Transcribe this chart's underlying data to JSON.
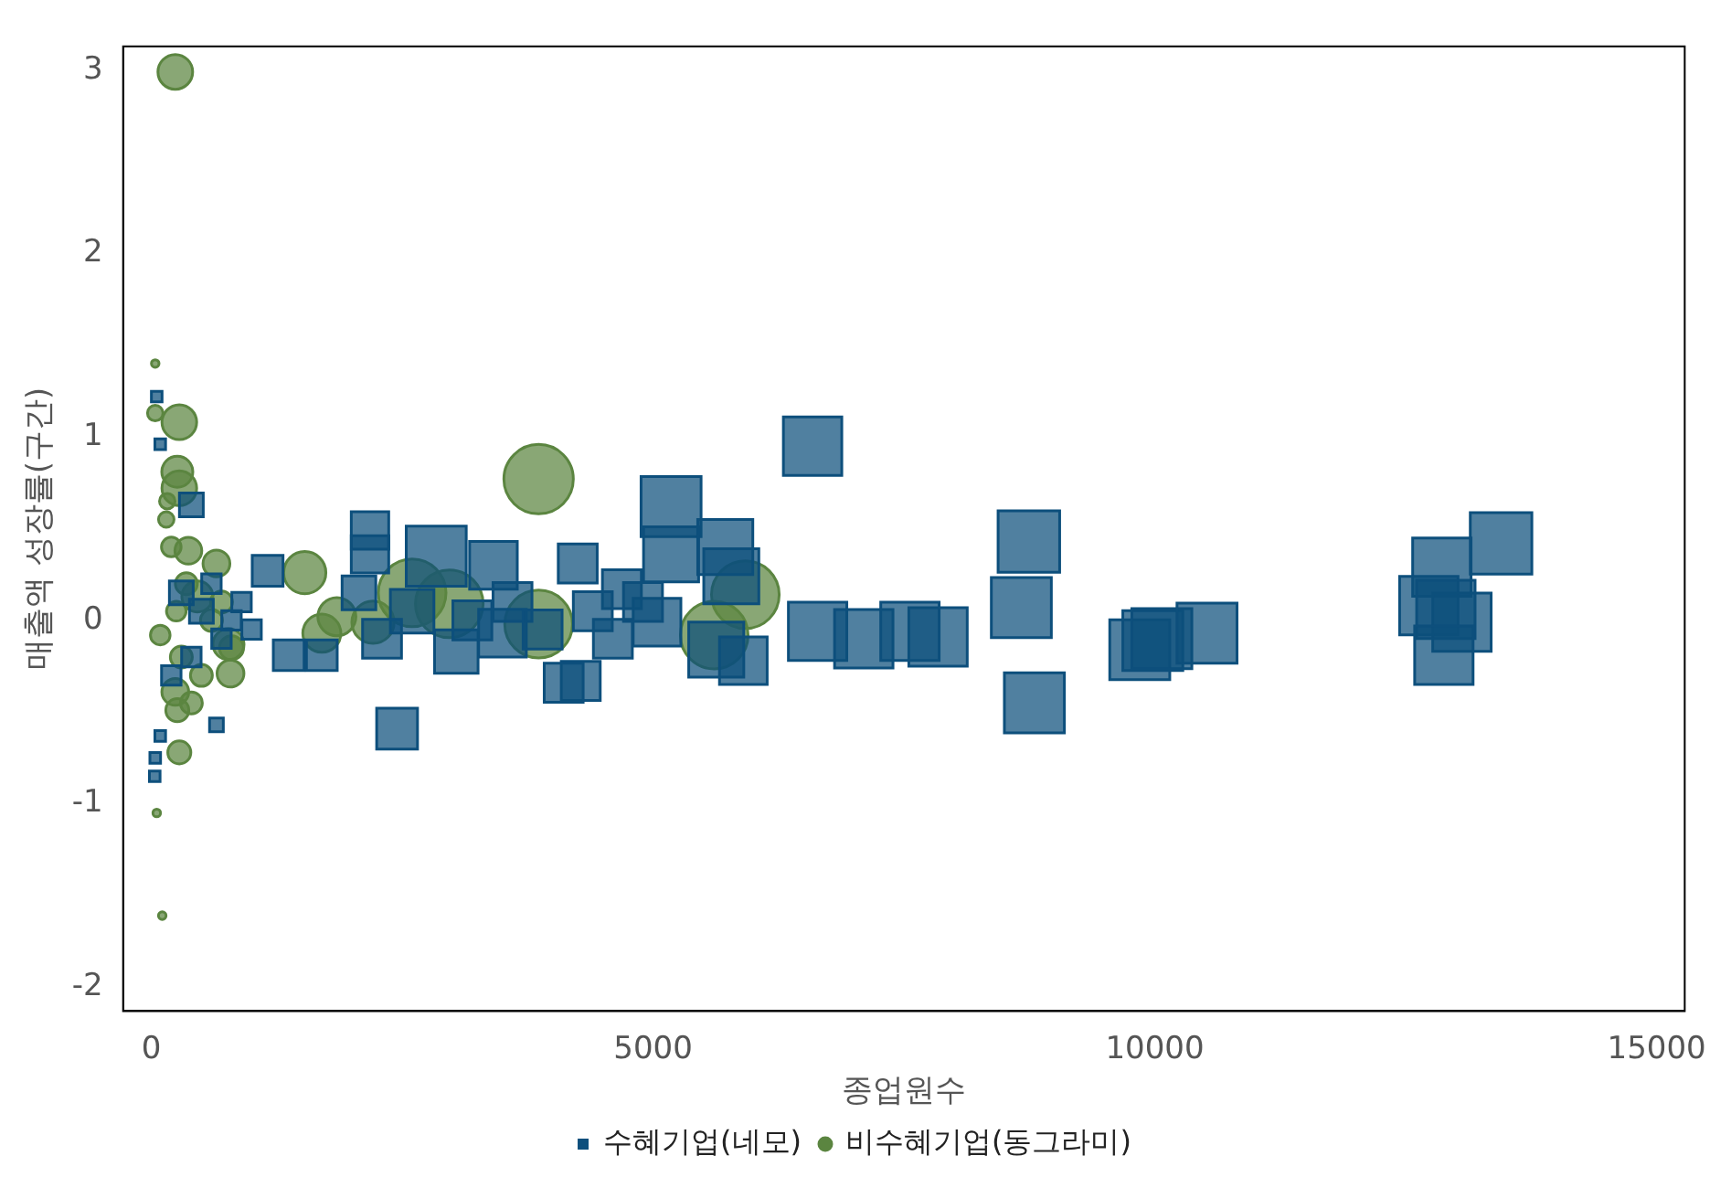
{
  "chart_data": {
    "type": "bubble",
    "xlabel": "종업원수",
    "ylabel": "매출액 성장률(구간)",
    "xlim": [
      -280,
      15280
    ],
    "xticks": [
      0,
      5000,
      10000,
      15000
    ],
    "ylim": [
      -2.13,
      3.13
    ],
    "yticks": [
      -2,
      -1,
      0,
      1,
      2,
      3
    ],
    "grid": false,
    "legend": "bottom",
    "series": [
      {
        "name": "수혜기업(네모)",
        "color": "#0d4f7c",
        "marker": "square",
        "x": [
          8745,
          8670,
          8800,
          9850,
          9980,
          10070,
          10520,
          13450,
          12860,
          12730,
          13060,
          12900,
          12880,
          6590,
          6640,
          7100,
          7840,
          7560,
          5180,
          5720,
          5780,
          5180,
          5630,
          5040,
          4280,
          4110,
          4250,
          4690,
          2840,
          3410,
          3500,
          3040,
          2180,
          2180,
          2450,
          2070,
          1370,
          1160,
          1700,
          650,
          400,
          55,
          90,
          40,
          35,
          90,
          300,
          500,
          700,
          900,
          200,
          400,
          600,
          800,
          1000,
          3200,
          3600,
          3900,
          4400,
          4600,
          4900,
          5900,
          2600,
          2300
        ],
        "values": [
          0.43,
          0.07,
          -0.45,
          -0.16,
          -0.11,
          -0.1,
          -0.07,
          0.42,
          0.29,
          0.08,
          -0.01,
          0.06,
          -0.19,
          0.95,
          -0.06,
          -0.1,
          -0.09,
          -0.06,
          0.62,
          0.4,
          0.24,
          0.36,
          -0.16,
          -0.01,
          -0.33,
          -0.34,
          0.31,
          0.17,
          0.35,
          0.3,
          -0.07,
          -0.17,
          0.49,
          0.36,
          -0.59,
          0.15,
          -0.19,
          0.27,
          -0.19,
          -0.57,
          0.63,
          1.22,
          0.96,
          -0.75,
          -0.85,
          -0.63,
          0.15,
          0.05,
          -0.1,
          0.1,
          -0.3,
          -0.2,
          0.2,
          0.0,
          -0.05,
          0.0,
          0.1,
          -0.05,
          0.05,
          -0.1,
          0.1,
          -0.22,
          0.05,
          -0.1
        ],
        "sizes": [
          1,
          0.95,
          0.95,
          0.95,
          0.95,
          0.95,
          0.95,
          1,
          0.9,
          0.9,
          0.9,
          0.9,
          0.9,
          0.9,
          0.9,
          0.9,
          0.9,
          0.9,
          0.95,
          0.8,
          0.8,
          0.8,
          0.8,
          0.6,
          0.4,
          0.4,
          0.4,
          0.4,
          0.95,
          0.6,
          0.6,
          0.5,
          0.37,
          0.37,
          0.44,
          0.3,
          0.25,
          0.25,
          0.25,
          0.05,
          0.15,
          0.03,
          0.03,
          0.03,
          0.03,
          0.03,
          0.15,
          0.15,
          0.1,
          0.1,
          0.1,
          0.1,
          0.1,
          0.1,
          0.1,
          0.4,
          0.4,
          0.4,
          0.4,
          0.4,
          0.4,
          0.6,
          0.5,
          0.4
        ]
      },
      {
        "name": "비수혜기업(동그라미)",
        "color": "#5b8540",
        "marker": "circle",
        "x": [
          240,
          280,
          40,
          40,
          260,
          280,
          55,
          110,
          280,
          260,
          240,
          650,
          770,
          790,
          460,
          370,
          90,
          1530,
          1700,
          1850,
          2210,
          2600,
          2970,
          3860,
          3860,
          5920,
          5610,
          150,
          200,
          350,
          300,
          250,
          500,
          600,
          700,
          400,
          160,
          800
        ],
        "values": [
          2.99,
          1.08,
          1.4,
          1.13,
          0.81,
          0.72,
          -1.05,
          -1.61,
          -0.72,
          -0.49,
          -0.39,
          0.31,
          -0.13,
          -0.29,
          0.13,
          0.38,
          -0.08,
          0.26,
          -0.07,
          0.02,
          -0.01,
          0.15,
          0.09,
          0.77,
          -0.02,
          0.14,
          -0.08,
          0.55,
          0.4,
          0.2,
          -0.2,
          0.05,
          -0.3,
          0.0,
          0.1,
          -0.45,
          0.65,
          -0.15
        ],
        "sizes": [
          0.25,
          0.25,
          0.012,
          0.05,
          0.2,
          0.25,
          0.012,
          0.012,
          0.11,
          0.11,
          0.15,
          0.15,
          0.2,
          0.15,
          0.2,
          0.15,
          0.08,
          0.37,
          0.3,
          0.3,
          0.37,
          0.95,
          0.95,
          1,
          0.95,
          0.95,
          0.95,
          0.05,
          0.08,
          0.1,
          0.1,
          0.08,
          0.1,
          0.1,
          0.1,
          0.1,
          0.05,
          0.12
        ]
      }
    ]
  }
}
